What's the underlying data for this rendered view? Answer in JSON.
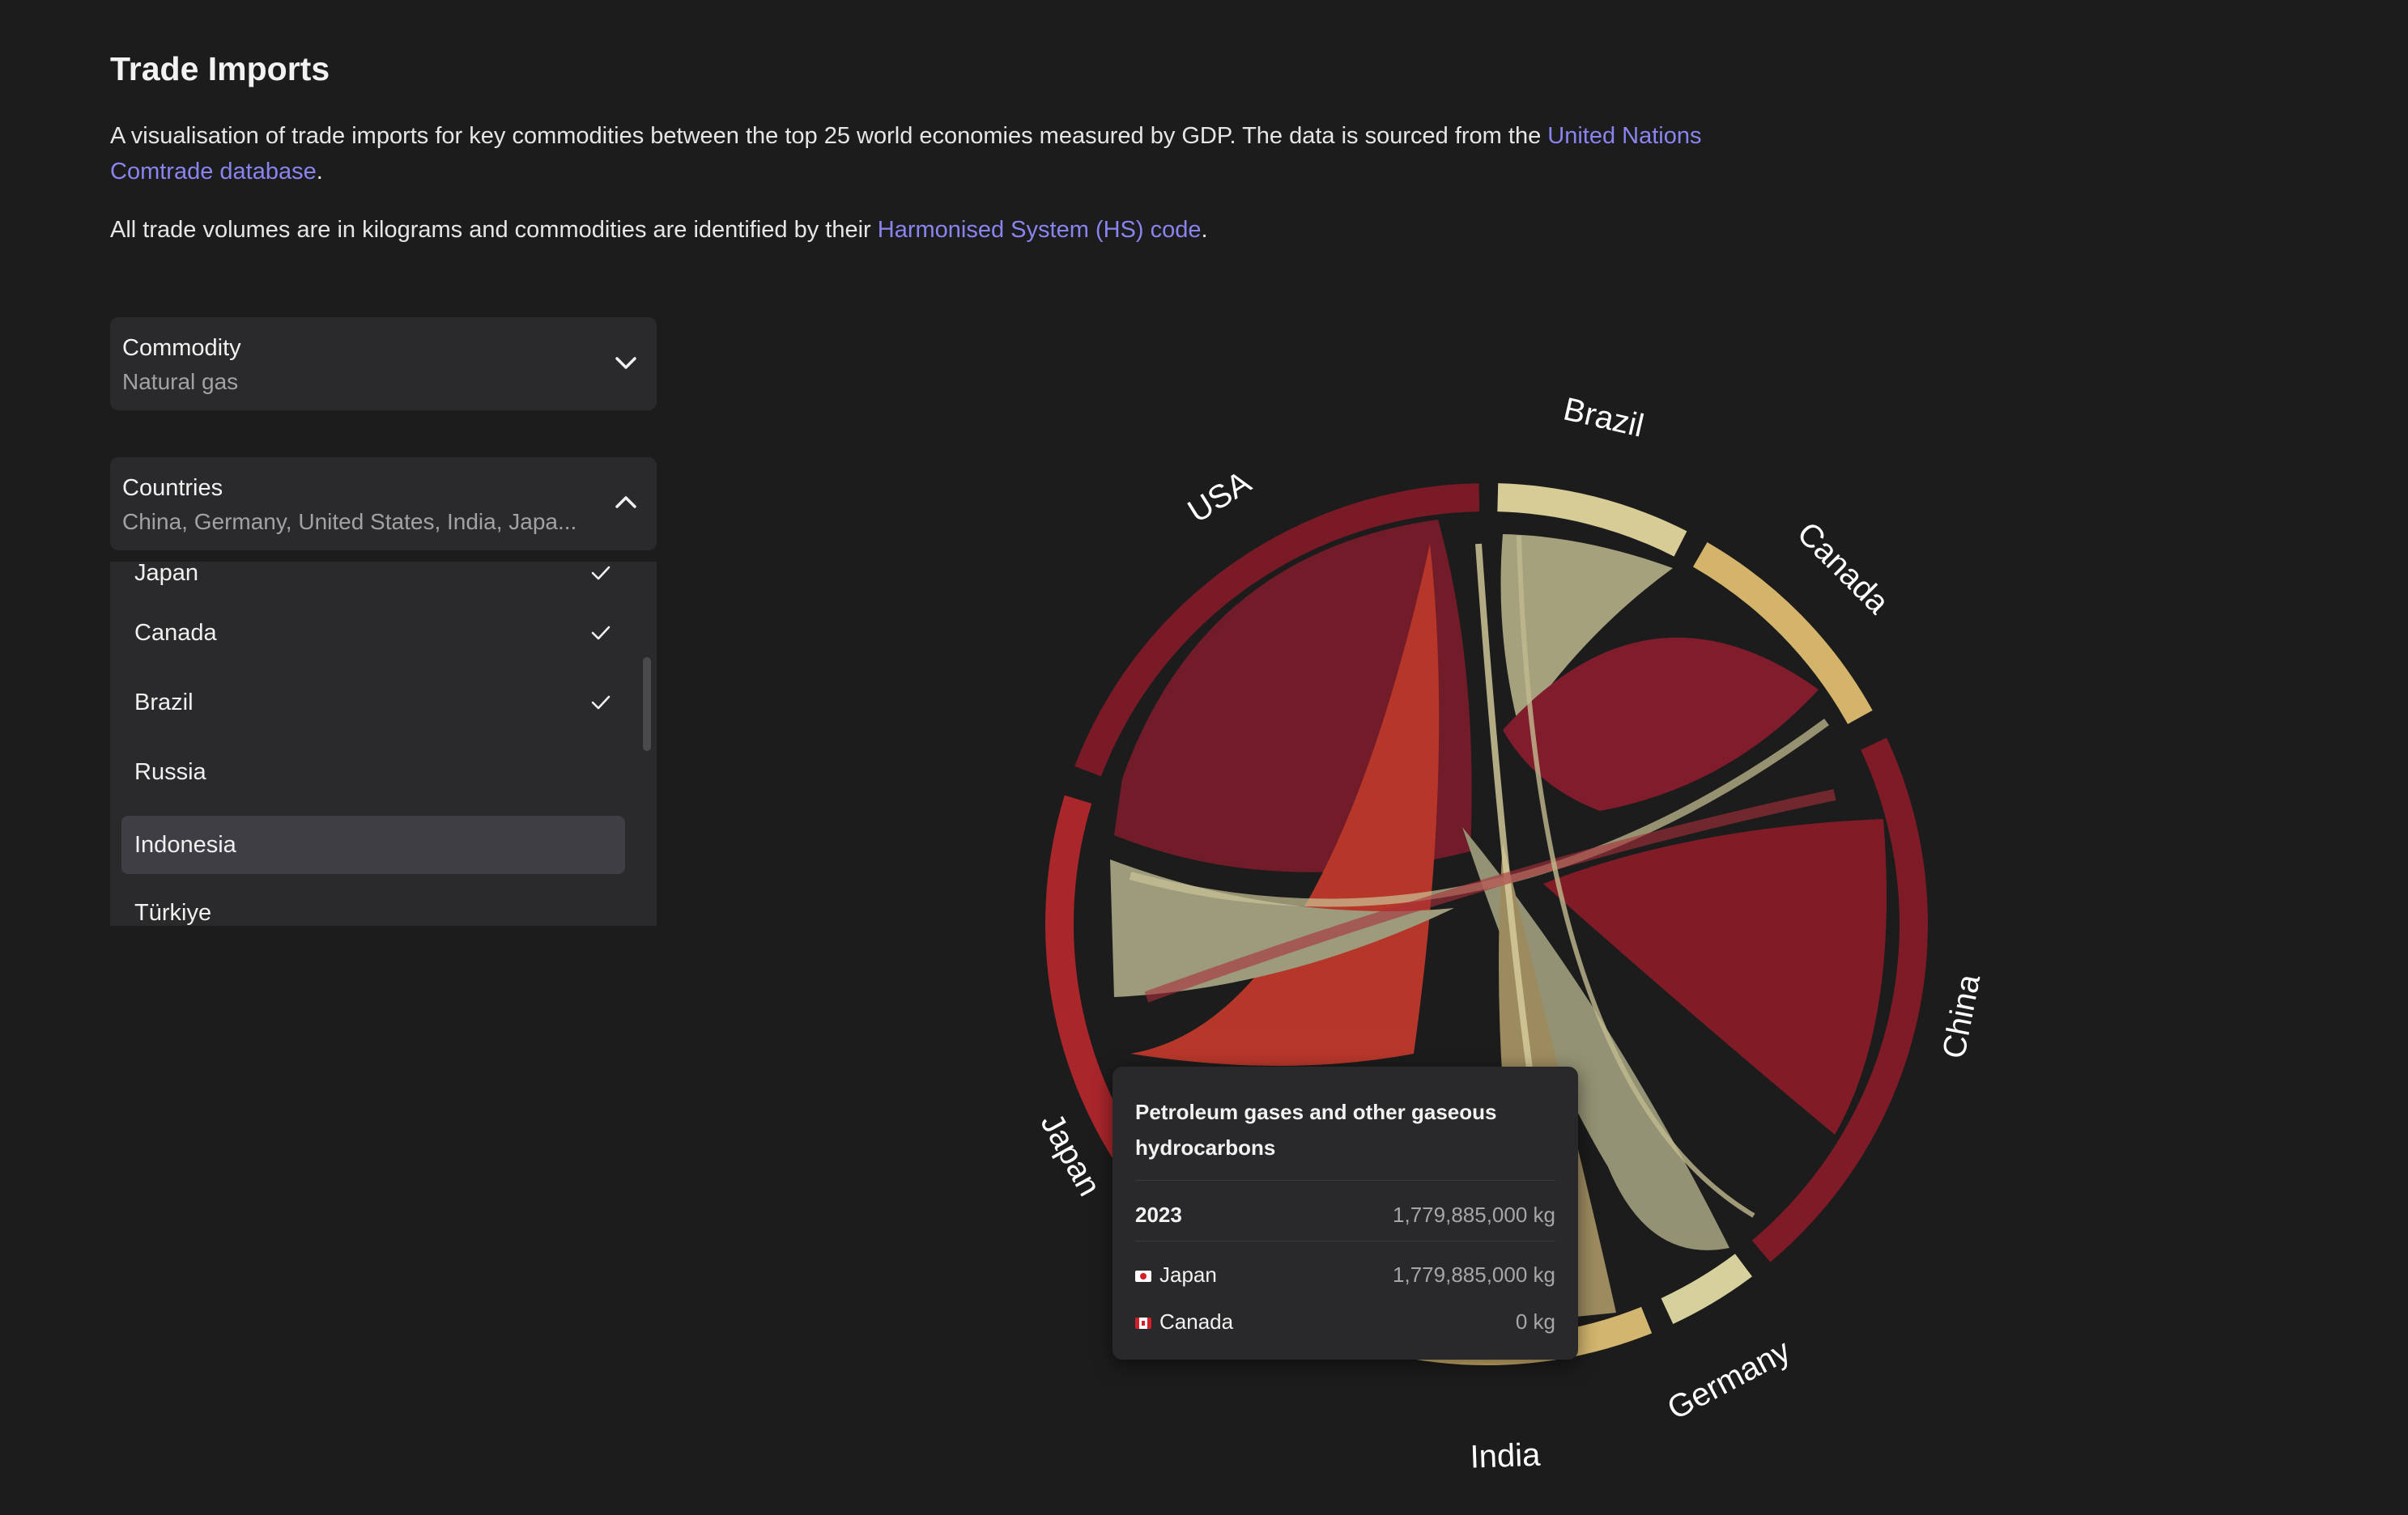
{
  "header": {
    "title": "Trade Imports",
    "intro_text": "A visualisation of trade imports for key commodities between the top 25 world economies measured by GDP. The data is sourced from the ",
    "intro_link": "United Nations Comtrade database",
    "intro_end": ".",
    "units_text": "All trade volumes are in kilograms and commodities are identified by their ",
    "units_link": "Harmonised System (HS) code",
    "units_end": "."
  },
  "commodity_select": {
    "label": "Commodity",
    "value": "Natural gas"
  },
  "countries_select": {
    "label": "Countries",
    "value": "China, Germany, United States, India, Japa...",
    "options": [
      {
        "label": "Japan",
        "checked": true
      },
      {
        "label": "Canada",
        "checked": true
      },
      {
        "label": "Brazil",
        "checked": true
      },
      {
        "label": "Russia",
        "checked": false
      },
      {
        "label": "Indonesia",
        "checked": false,
        "highlighted": true
      },
      {
        "label": "Türkiye",
        "checked": false
      }
    ]
  },
  "chart_data": {
    "type": "chord",
    "groups": [
      {
        "name": "USA",
        "color": "#7a1a27"
      },
      {
        "name": "Brazil",
        "color": "#d8cc96"
      },
      {
        "name": "Canada",
        "color": "#d4b46a"
      },
      {
        "name": "China",
        "color": "#7f1b27"
      },
      {
        "name": "Germany",
        "color": "#d6d09c"
      },
      {
        "name": "India",
        "color": "#d2b56e"
      },
      {
        "name": "Japan",
        "color": "#a9262b"
      }
    ]
  },
  "tooltip": {
    "title": "Petroleum gases and other gaseous hydrocarbons",
    "year": "2023",
    "year_value": "1,779,885,000 kg",
    "rows": [
      {
        "country": "Japan",
        "flag": "jp",
        "value": "1,779,885,000 kg"
      },
      {
        "country": "Canada",
        "flag": "ca",
        "value": "0 kg"
      }
    ]
  }
}
